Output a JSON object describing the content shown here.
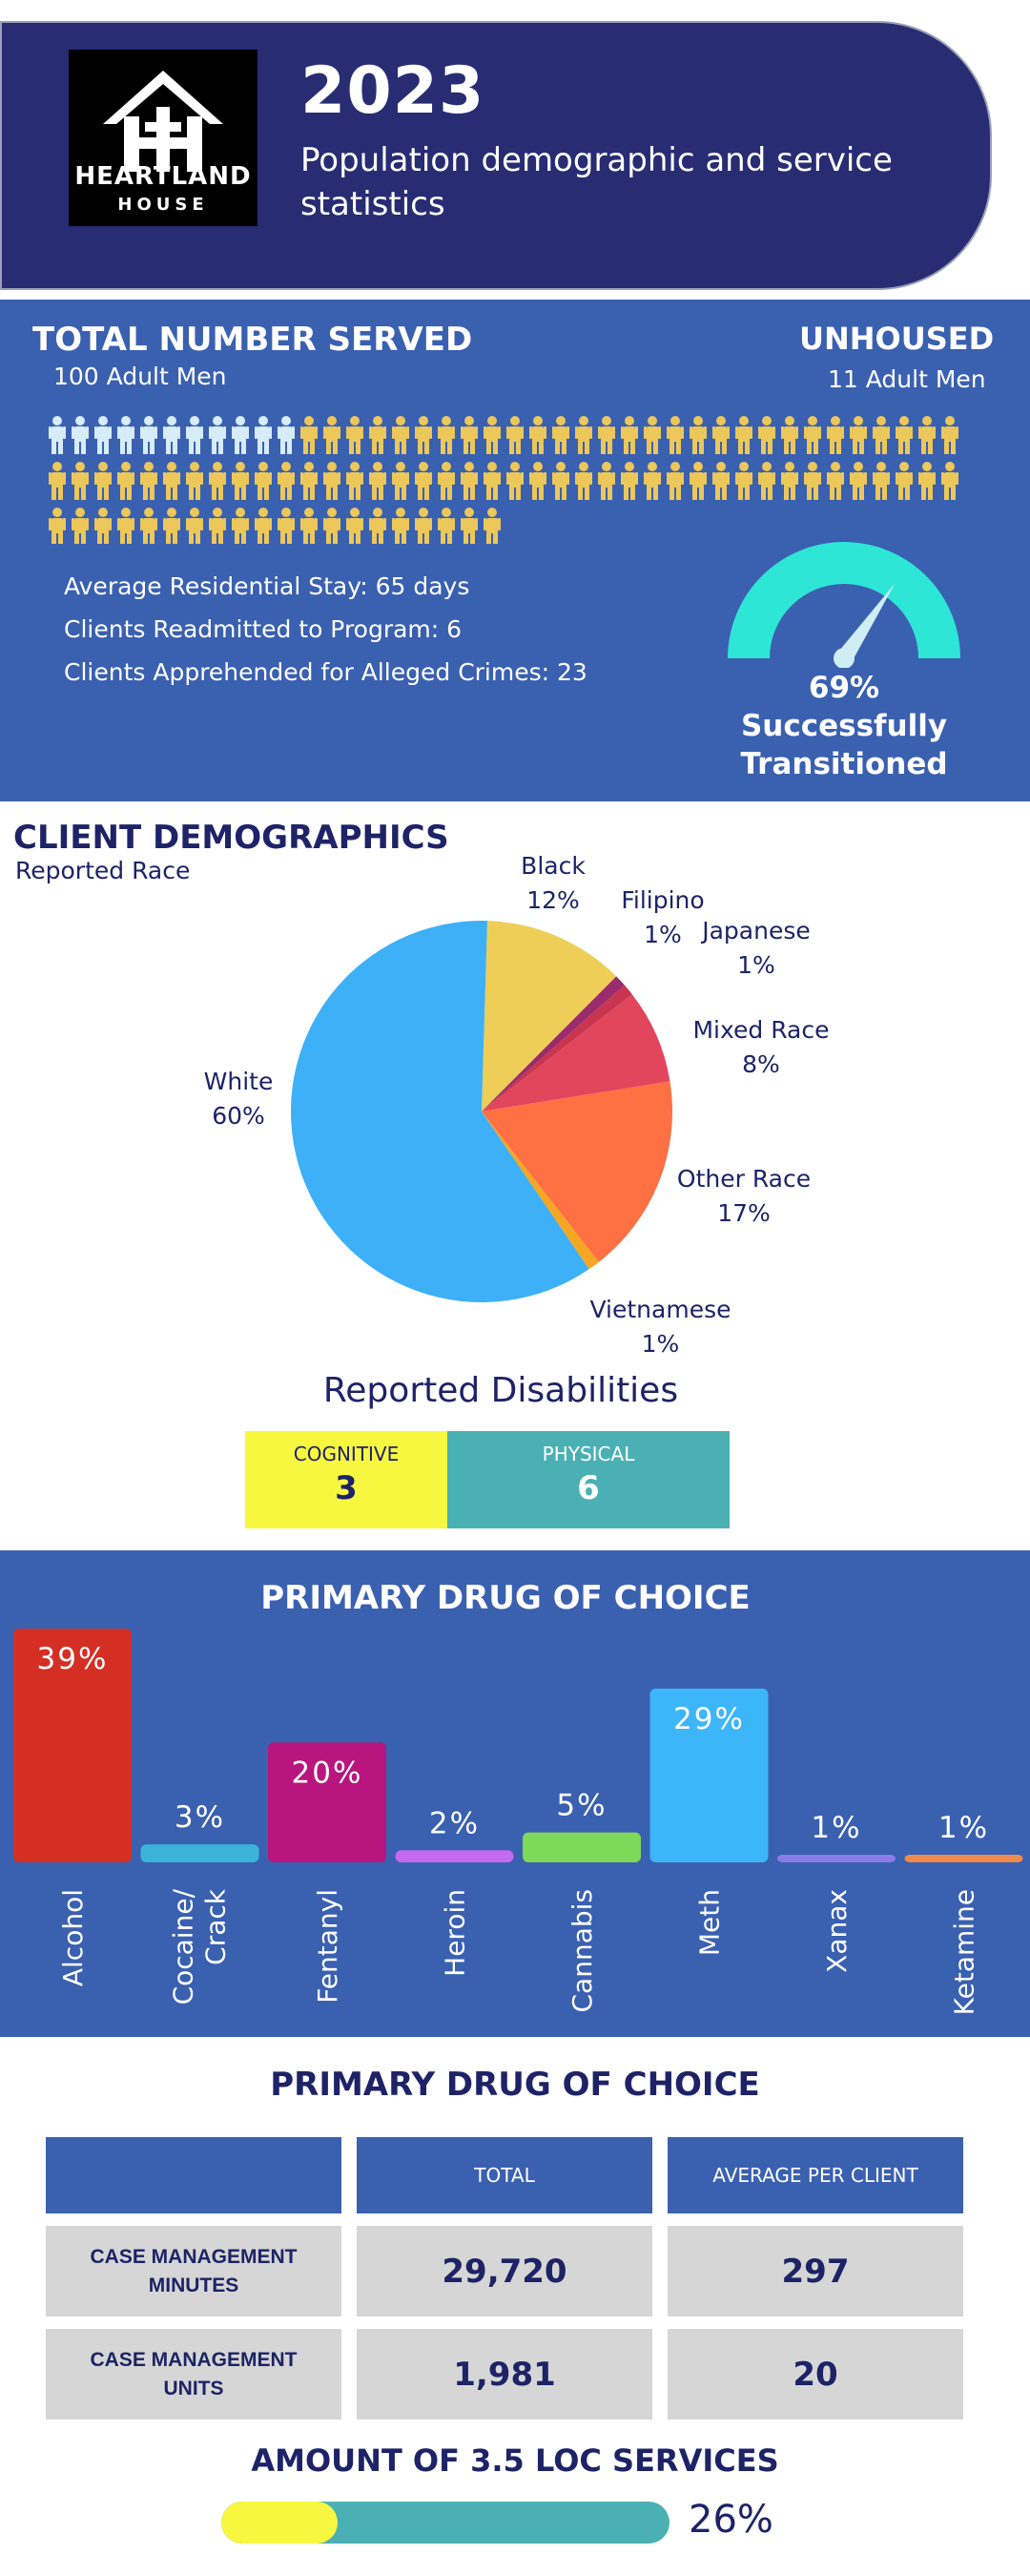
{
  "header": {
    "logo_line1": "HEARTLAND",
    "logo_line2": "HOUSE",
    "year": "2023",
    "subtitle": "Population demographic and service statistics"
  },
  "served": {
    "title": "TOTAL NUMBER SERVED",
    "subtitle": "100 Adult Men",
    "unhoused_title": "UNHOUSED",
    "unhoused_sub": "11 Adult Men",
    "total": 100,
    "unhoused": 11,
    "stats": [
      "Average Residential Stay: 65 days",
      "Clients Readmitted to Program: 6",
      "Clients Apprehended for Alleged Crimes: 23"
    ],
    "gauge_value": "69%",
    "gauge_fraction": 0.69,
    "gauge_line1": "Successfully",
    "gauge_line2": "Transitioned",
    "colors": {
      "unhoused": "#d6ecf8",
      "housed": "#ecc75a",
      "gauge": "#2ee6d6"
    }
  },
  "demographics": {
    "title": "CLIENT DEMOGRAPHICS",
    "subtitle": "Reported Race",
    "pie": [
      {
        "name": "White",
        "pct": "60%",
        "value": 60,
        "color": "#3db0f7"
      },
      {
        "name": "Black",
        "pct": "12%",
        "value": 12,
        "color": "#efce58"
      },
      {
        "name": "Filipino",
        "pct": "1%",
        "value": 1,
        "color": "#9a2b6c"
      },
      {
        "name": "Japanese",
        "pct": "1%",
        "value": 1,
        "color": "#c9354f"
      },
      {
        "name": "Mixed Race",
        "pct": "8%",
        "value": 8,
        "color": "#e2465c"
      },
      {
        "name": "Other Race",
        "pct": "17%",
        "value": 17,
        "color": "#ff7043"
      },
      {
        "name": "Vietnamese",
        "pct": "1%",
        "value": 1,
        "color": "#f5a623"
      }
    ],
    "disabilities_title": "Reported Disabilities",
    "disabilities": [
      {
        "label": "COGNITIVE",
        "value": "3",
        "color": "#f8f740"
      },
      {
        "label": "PHYSICAL",
        "value": "6",
        "color": "#4ab0b4"
      }
    ]
  },
  "chart_data": {
    "type": "bar",
    "title": "PRIMARY DRUG OF CHOICE",
    "categories": [
      "Alcohol",
      "Cocaine/ Crack",
      "Fentanyl",
      "Heroin",
      "Cannabis",
      "Meth",
      "Xanax",
      "Ketamine"
    ],
    "values": [
      39,
      3,
      20,
      2,
      5,
      29,
      1,
      1
    ],
    "labels": [
      "39%",
      "3%",
      "20%",
      "2%",
      "5%",
      "29%",
      "1%",
      "1%"
    ],
    "colors": [
      "#d52f24",
      "#3cb3d8",
      "#b8167e",
      "#c56af0",
      "#7ed85a",
      "#3cb6f8",
      "#8a7be8",
      "#f08a4a"
    ],
    "ylim": [
      0,
      39
    ]
  },
  "services": {
    "title": "PRIMARY DRUG OF CHOICE",
    "col_total": "TOTAL",
    "col_avg": "AVERAGE PER CLIENT",
    "rows": [
      {
        "label_1": "CASE MANAGEMENT",
        "label_2": "MINUTES",
        "total": "29,720",
        "avg": "297"
      },
      {
        "label_1": "CASE MANAGEMENT",
        "label_2": "UNITS",
        "total": "1,981",
        "avg": "20"
      }
    ],
    "loc_title": "AMOUNT OF 3.5 LOC SERVICES",
    "loc_value": "26%",
    "loc_fraction": 0.26
  }
}
